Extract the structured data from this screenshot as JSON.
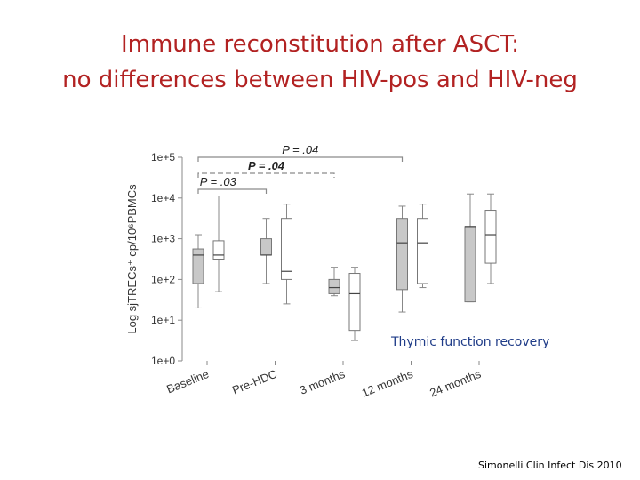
{
  "slide": {
    "title_line1": "Immune reconstitution after ASCT:",
    "title_line2": "no differences between HIV-pos and HIV-neg",
    "annotation": "Thymic function recovery",
    "citation": "Simonelli Clin Infect Dis 2010"
  },
  "chart_data": {
    "type": "box",
    "title": "",
    "ylabel": "Log sjTRECs⁺ cp/10⁶PBMCs",
    "xlabel": "",
    "y_scale": "log10",
    "y_ticks": [
      "1e+0",
      "1e+1",
      "1e+2",
      "1e+3",
      "1e+4",
      "1e+5"
    ],
    "categories": [
      "Baseline",
      "Pre-HDC",
      "3 months",
      "12 months",
      "24 months"
    ],
    "series": [
      {
        "name": "HIV-pos",
        "fill": "#c8c8c8",
        "boxes": [
          {
            "min": 1.3,
            "q1": 1.9,
            "median": 2.6,
            "q3": 2.75,
            "max": 3.1
          },
          {
            "min": 1.9,
            "q1": 2.6,
            "median": 2.6,
            "q3": 3.0,
            "max": 3.5
          },
          {
            "min": 1.6,
            "q1": 1.65,
            "median": 1.8,
            "q3": 2.0,
            "max": 2.3
          },
          {
            "min": 1.2,
            "q1": 1.75,
            "median": 2.9,
            "q3": 3.5,
            "max": 3.8
          },
          {
            "min": 1.45,
            "q1": 1.45,
            "median": 3.3,
            "q3": 3.3,
            "max": 4.1
          }
        ]
      },
      {
        "name": "HIV-neg",
        "fill": "#ffffff",
        "boxes": [
          {
            "min": 1.7,
            "q1": 2.5,
            "median": 2.6,
            "q3": 2.95,
            "max": 4.05
          },
          {
            "min": 1.4,
            "q1": 2.0,
            "median": 2.2,
            "q3": 3.5,
            "max": 3.85
          },
          {
            "min": 0.5,
            "q1": 0.75,
            "median": 1.65,
            "q3": 2.15,
            "max": 2.3
          },
          {
            "min": 1.8,
            "q1": 1.9,
            "median": 2.9,
            "q3": 3.5,
            "max": 3.85
          },
          {
            "min": 1.9,
            "q1": 2.4,
            "median": 3.1,
            "q3": 3.7,
            "max": 4.1
          }
        ]
      }
    ],
    "annotations": [
      {
        "text": "P = .04",
        "from_category": 0,
        "to_category": 3,
        "line": "solid"
      },
      {
        "text": "P = .04",
        "from_category": 0,
        "to_category": 2,
        "line": "dashed",
        "bold": true
      },
      {
        "text": "P = .03",
        "from_category": 0,
        "to_category": 1,
        "line": "solid"
      }
    ]
  }
}
